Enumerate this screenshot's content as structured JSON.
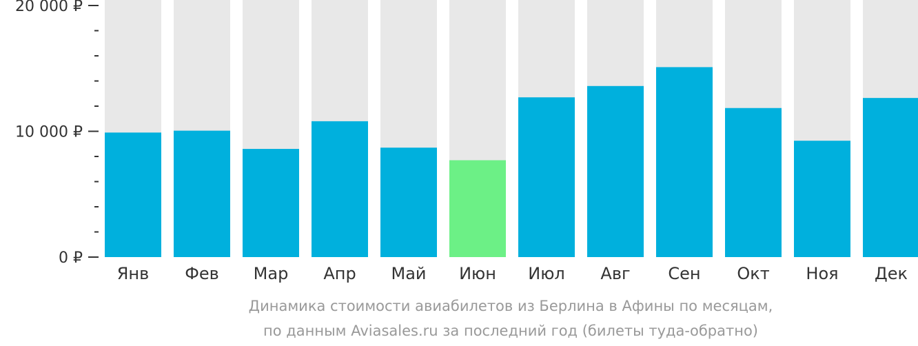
{
  "chart_data": {
    "type": "bar",
    "categories": [
      "Янв",
      "Фев",
      "Мар",
      "Апр",
      "Май",
      "Июн",
      "Июл",
      "Авг",
      "Сен",
      "Окт",
      "Ноя",
      "Дек"
    ],
    "values": [
      9900,
      10050,
      8600,
      10800,
      8700,
      7700,
      12700,
      13600,
      15100,
      11850,
      9250,
      12650
    ],
    "ylim": [
      0,
      20000
    ],
    "yticks": [
      {
        "value": 0,
        "label": "0 ₽"
      },
      {
        "value": 10000,
        "label": "10 000 ₽"
      },
      {
        "value": 20000,
        "label": "20 000 ₽"
      }
    ],
    "minor_tick_step": 2000,
    "highlight_index": 5,
    "colors": {
      "bar": "#00b0dd",
      "highlight": "#6cf086",
      "background_column": "#e8e8e8",
      "axis": "#333333",
      "caption": "#999999"
    },
    "caption_line1": "Динамика стоимости авиабилетов из Берлина в Афины по месяцам,",
    "caption_line2": "по данным Aviasales.ru за последний год (билеты туда-обратно)"
  }
}
